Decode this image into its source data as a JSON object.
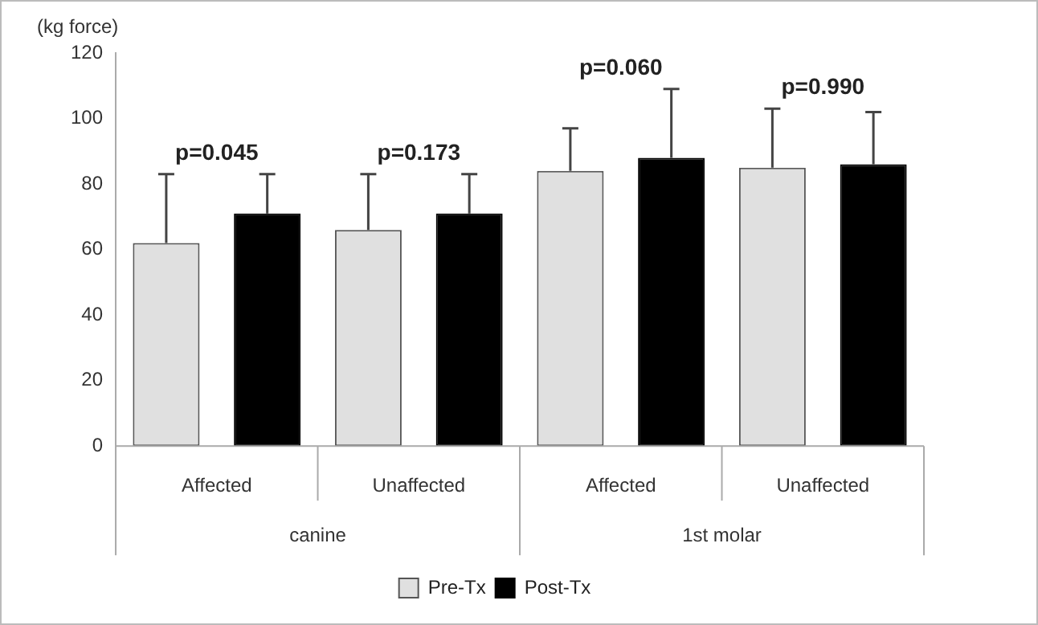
{
  "chart_data": {
    "type": "bar",
    "ylabel": "(kg force)",
    "categories": [
      "Affected",
      "Unaffected",
      "Affected",
      "Unaffected"
    ],
    "series": [
      {
        "name": "Pre-Tx",
        "color": "#e0e0e0",
        "values": [
          62,
          66,
          84,
          85
        ],
        "errors": [
          [
            62,
            83
          ],
          [
            66,
            83
          ],
          [
            84,
            97
          ],
          [
            85,
            103
          ]
        ]
      },
      {
        "name": "Post-Tx",
        "color": "#000000",
        "values": [
          71,
          71,
          88,
          86
        ],
        "errors": [
          [
            71,
            83
          ],
          [
            71,
            83
          ],
          [
            88,
            109
          ],
          [
            86,
            102
          ]
        ]
      }
    ],
    "ylim": [
      0,
      120
    ],
    "yticks": [
      0,
      20,
      40,
      60,
      80,
      100,
      120
    ],
    "grid": false,
    "legend": "bottom",
    "annotations": [
      "p=0.045",
      "p=0.173",
      "p=0.060",
      "p=0.990",
      "canine",
      "1st molar"
    ]
  }
}
